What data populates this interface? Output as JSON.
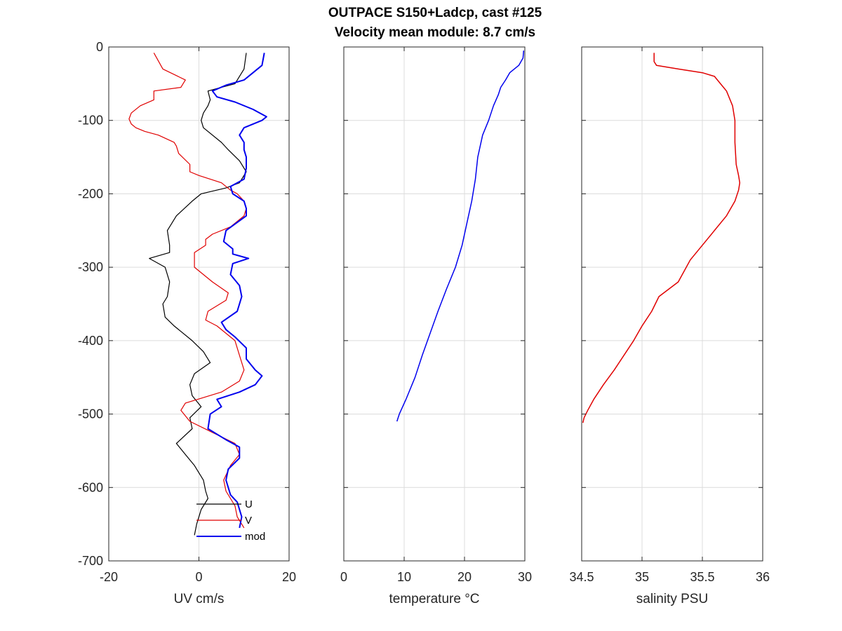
{
  "title_line1": "OUTPACE S150+Ladcp, cast #125",
  "title_line2": "Velocity mean module:  8.7 cm/s",
  "chart_data": [
    {
      "type": "line",
      "xlabel": "UV cm/s",
      "ylabel": "",
      "xlim": [
        -20,
        20
      ],
      "ylim": [
        -700,
        0
      ],
      "xticks": [
        "-20",
        "0",
        "20"
      ],
      "yticks": [
        "0",
        "-100",
        "-200",
        "-300",
        "-400",
        "-500",
        "-600",
        "-700"
      ],
      "grid": true,
      "legend": "bottom-left",
      "series": [
        {
          "name": "U",
          "color": "#000000",
          "width": 1.2,
          "depth": [
            -8,
            -30,
            -50,
            -55,
            -60,
            -72,
            -80,
            -90,
            -100,
            -110,
            -130,
            -140,
            -155,
            -170,
            -185,
            -192,
            -200,
            -210,
            -230,
            -250,
            -270,
            -280,
            -288,
            -300,
            -320,
            -340,
            -350,
            -368,
            -380,
            -400,
            -415,
            -430,
            -445,
            -460,
            -475,
            -490,
            -505,
            -520,
            -540,
            -555,
            -570,
            -590,
            -605,
            -615,
            -630,
            -650,
            -665
          ],
          "values": [
            10.5,
            10,
            8,
            5,
            2,
            2.5,
            2,
            1,
            0.5,
            1,
            5,
            6.5,
            9,
            10.5,
            9,
            6,
            0.5,
            -1.5,
            -5,
            -7,
            -6.5,
            -6.5,
            -11,
            -7.5,
            -6.5,
            -7,
            -8,
            -7.5,
            -5.5,
            -1.5,
            1,
            2.5,
            -1,
            -2,
            -1.5,
            0.5,
            -2,
            -1.5,
            -5,
            -3,
            -1,
            1,
            1.5,
            2,
            0.5,
            -0.5,
            -1
          ]
        },
        {
          "name": "V",
          "color": "#e00000",
          "width": 1.2,
          "depth": [
            -8,
            -30,
            -45,
            -55,
            -60,
            -72,
            -80,
            -90,
            -98,
            -105,
            -110,
            -115,
            -120,
            -130,
            -135,
            -145,
            -160,
            -170,
            -175,
            -185,
            -195,
            -200,
            -210,
            -220,
            -230,
            -245,
            -255,
            -262,
            -270,
            -280,
            -300,
            -320,
            -335,
            -345,
            -360,
            -372,
            -380,
            -400,
            -420,
            -440,
            -455,
            -470,
            -485,
            -495,
            -510,
            -525,
            -540,
            -555,
            -570,
            -590,
            -605,
            -615,
            -625,
            -640,
            -655
          ],
          "values": [
            -10,
            -8,
            -3,
            -4,
            -10,
            -10,
            -13,
            -15,
            -15.5,
            -15,
            -14,
            -12,
            -9,
            -5.5,
            -5,
            -4.5,
            -2,
            -2,
            0,
            5,
            7,
            8.5,
            10,
            10.5,
            10,
            7,
            3,
            1.5,
            1.5,
            -1,
            -1,
            3,
            6.5,
            6,
            2,
            1.5,
            4,
            8,
            9,
            10,
            9,
            5,
            -3,
            -4,
            -2,
            3,
            8,
            9,
            7,
            5.5,
            6,
            7,
            8,
            8.5,
            10
          ]
        },
        {
          "name": "mod",
          "color": "#0000ee",
          "width": 2,
          "depth": [
            -8,
            -25,
            -35,
            -45,
            -52,
            -60,
            -68,
            -75,
            -85,
            -95,
            -100,
            -110,
            -120,
            -130,
            -140,
            -150,
            -165,
            -180,
            -190,
            -200,
            -210,
            -220,
            -230,
            -250,
            -265,
            -275,
            -282,
            -288,
            -295,
            -310,
            -325,
            -340,
            -360,
            -375,
            -385,
            -395,
            -410,
            -425,
            -440,
            -448,
            -460,
            -470,
            -480,
            -490,
            -500,
            -520,
            -535,
            -545,
            -560,
            -575,
            -590,
            -610,
            -620,
            -640,
            -655
          ],
          "values": [
            14.5,
            14,
            12,
            10,
            6,
            3,
            4,
            8,
            12,
            15,
            14,
            10,
            9,
            10,
            10,
            10.5,
            10.5,
            10,
            7,
            7.5,
            10,
            10.5,
            10.5,
            6,
            5.5,
            7.5,
            7.5,
            11,
            7.5,
            7,
            9,
            9.5,
            8.5,
            5,
            6,
            8,
            10.5,
            10.5,
            12.5,
            14,
            12.5,
            9,
            4,
            5,
            2.5,
            2,
            6,
            9,
            9,
            6.5,
            6,
            7,
            8.5,
            9.5,
            9
          ]
        }
      ]
    },
    {
      "type": "line",
      "xlabel": "temperature °C",
      "ylabel": "",
      "xlim": [
        0,
        30
      ],
      "ylim": [
        -700,
        0
      ],
      "xticks": [
        "0",
        "10",
        "20",
        "30"
      ],
      "grid": true,
      "series": [
        {
          "name": "",
          "color": "#0000ee",
          "width": 1.5,
          "depth": [
            -5,
            -15,
            -25,
            -35,
            -45,
            -55,
            -65,
            -80,
            -100,
            -120,
            -150,
            -180,
            -210,
            -240,
            -270,
            -300,
            -330,
            -360,
            -390,
            -420,
            -450,
            -480,
            -500,
            -510
          ],
          "values": [
            29.8,
            29.7,
            29,
            27.5,
            26.8,
            26,
            25.6,
            24.8,
            24,
            23,
            22.2,
            21.8,
            21.2,
            20.4,
            19.6,
            18.5,
            17,
            15.6,
            14.3,
            13,
            11.8,
            10.3,
            9.2,
            8.8
          ]
        }
      ]
    },
    {
      "type": "line",
      "xlabel": "salinity PSU",
      "ylabel": "",
      "xlim": [
        34.5,
        36
      ],
      "ylim": [
        -700,
        0
      ],
      "xticks": [
        "34.5",
        "35",
        "35.5",
        "36"
      ],
      "grid": true,
      "series": [
        {
          "name": "",
          "color": "#e00000",
          "width": 1.5,
          "depth": [
            -8,
            -20,
            -25,
            -30,
            -35,
            -40,
            -50,
            -60,
            -80,
            -100,
            -130,
            -160,
            -175,
            -185,
            -195,
            -210,
            -230,
            -260,
            -290,
            -320,
            -340,
            -360,
            -380,
            -400,
            -420,
            -440,
            -460,
            -480,
            -495,
            -505,
            -512
          ],
          "values": [
            35.1,
            35.1,
            35.12,
            35.3,
            35.5,
            35.6,
            35.65,
            35.7,
            35.75,
            35.77,
            35.77,
            35.78,
            35.8,
            35.81,
            35.8,
            35.77,
            35.7,
            35.55,
            35.4,
            35.3,
            35.14,
            35.08,
            35.0,
            34.93,
            34.85,
            34.77,
            34.68,
            34.6,
            34.55,
            34.52,
            34.51
          ]
        }
      ]
    }
  ]
}
